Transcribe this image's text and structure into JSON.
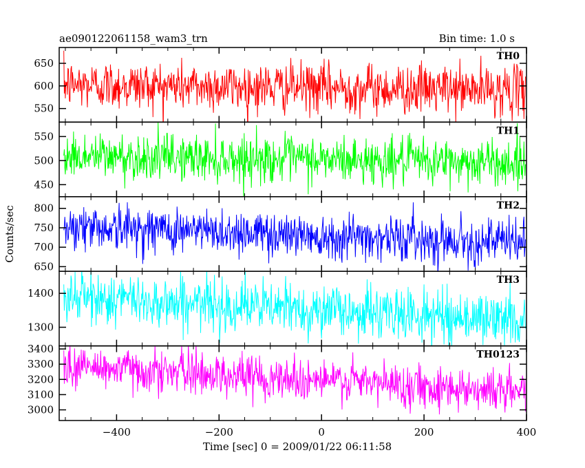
{
  "header": {
    "left": "ae090122061158_wam3_trn",
    "right": "Bin time: 1.0 s"
  },
  "chart_data": {
    "type": "line",
    "xlabel": "Time [sec] 0 = 2009/01/22 06:11:58",
    "ylabel": "Counts/sec",
    "xlim": [
      -512,
      400
    ],
    "x_ticks": [
      -400,
      -200,
      0,
      200,
      400
    ],
    "x_tick_labels": [
      "−400",
      "−200",
      "0",
      "200",
      "400"
    ],
    "bin_time_s": 1.0,
    "x_range_data": [
      -503,
      398
    ],
    "panels": [
      {
        "name": "TH0",
        "color": "#ff0000",
        "ylim": [
          520,
          685
        ],
        "y_ticks": [
          550,
          600,
          650
        ],
        "mean_start": 603,
        "mean_end": 590,
        "noise": 27
      },
      {
        "name": "TH1",
        "color": "#00ff00",
        "ylim": [
          425,
          580
        ],
        "y_ticks": [
          450,
          500,
          550
        ],
        "mean_start": 510,
        "mean_end": 495,
        "noise": 24
      },
      {
        "name": "TH2",
        "color": "#0000ff",
        "ylim": [
          638,
          830
        ],
        "y_ticks": [
          650,
          700,
          750,
          800
        ],
        "mean_start": 755,
        "mean_end": 712,
        "noise": 29
      },
      {
        "name": "TH3",
        "color": "#00ffff",
        "ylim": [
          1245,
          1465
        ],
        "y_ticks": [
          1300,
          1400
        ],
        "mean_start": 1390,
        "mean_end": 1320,
        "noise": 38
      },
      {
        "name": "TH0123",
        "color": "#ff00ff",
        "ylim": [
          2930,
          3420
        ],
        "y_ticks": [
          3000,
          3100,
          3200,
          3300,
          3400
        ],
        "mean_start": 3290,
        "mean_end": 3120,
        "noise": 70
      }
    ]
  }
}
